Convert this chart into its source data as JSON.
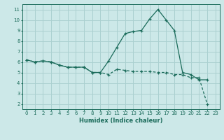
{
  "xlabel": "Humidex (Indice chaleur)",
  "ylabel": "",
  "background_color": "#cce8e8",
  "grid_color": "#aad0d0",
  "line_color": "#1a6b5a",
  "xlim": [
    -0.5,
    23.5
  ],
  "ylim": [
    1.5,
    11.5
  ],
  "yticks": [
    2,
    3,
    4,
    5,
    6,
    7,
    8,
    9,
    10,
    11
  ],
  "xticks": [
    0,
    1,
    2,
    3,
    4,
    5,
    6,
    7,
    8,
    9,
    10,
    11,
    12,
    13,
    14,
    15,
    16,
    17,
    18,
    19,
    20,
    21,
    22,
    23
  ],
  "curve1_x": [
    0,
    1,
    2,
    3,
    4,
    5,
    6,
    7,
    8,
    9,
    10,
    11,
    12,
    13,
    14,
    15,
    16,
    17,
    18,
    19,
    20,
    21,
    22
  ],
  "curve1_y": [
    6.2,
    6.0,
    6.1,
    6.0,
    5.7,
    5.5,
    5.5,
    5.5,
    5.0,
    5.0,
    6.1,
    7.4,
    8.7,
    8.9,
    9.0,
    10.1,
    11.0,
    10.0,
    9.0,
    5.0,
    4.8,
    4.3,
    4.3
  ],
  "curve2_x": [
    0,
    1,
    2,
    3,
    4,
    5,
    6,
    7,
    8,
    9,
    10,
    11,
    12,
    13,
    14,
    15,
    16,
    17,
    18,
    19,
    20,
    21,
    22
  ],
  "curve2_y": [
    6.2,
    6.0,
    6.1,
    6.0,
    5.7,
    5.5,
    5.5,
    5.5,
    5.0,
    5.0,
    4.8,
    5.3,
    5.2,
    5.1,
    5.1,
    5.1,
    5.0,
    5.0,
    4.8,
    4.8,
    4.5,
    4.5,
    2.0
  ]
}
